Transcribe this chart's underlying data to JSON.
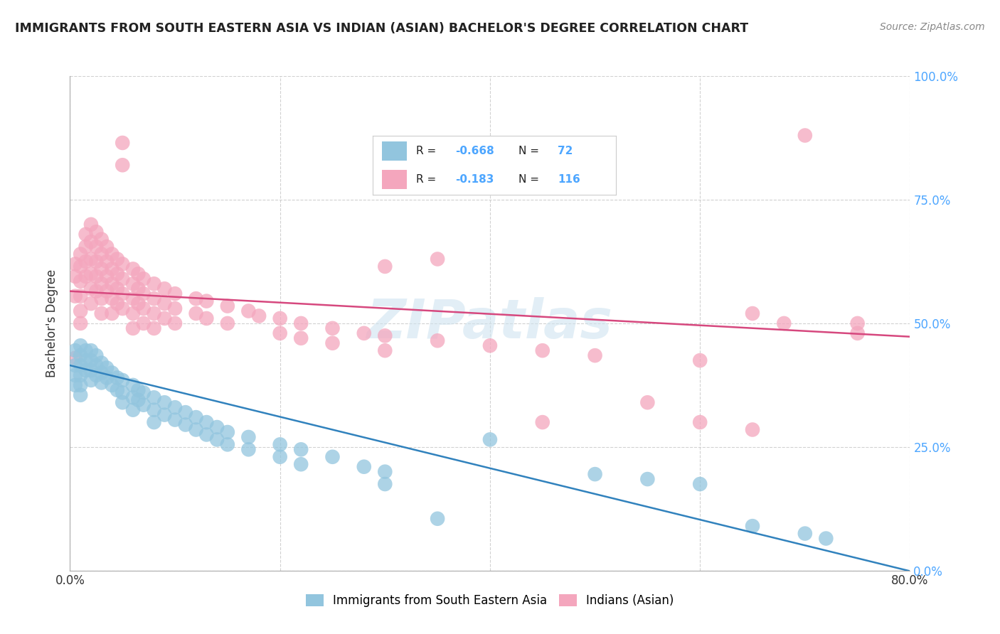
{
  "title": "IMMIGRANTS FROM SOUTH EASTERN ASIA VS INDIAN (ASIAN) BACHELOR'S DEGREE CORRELATION CHART",
  "source": "Source: ZipAtlas.com",
  "ylabel": "Bachelor's Degree",
  "ytick_values": [
    0.0,
    0.25,
    0.5,
    0.75,
    1.0
  ],
  "xlim": [
    0.0,
    0.8
  ],
  "ylim": [
    0.0,
    1.0
  ],
  "watermark": "ZIPatlas",
  "legend_labels": [
    "Immigrants from South Eastern Asia",
    "Indians (Asian)"
  ],
  "blue_color": "#92c5de",
  "pink_color": "#f4a6bd",
  "blue_line_color": "#3182bd",
  "pink_line_color": "#d6487e",
  "background_color": "#ffffff",
  "grid_color": "#cccccc",
  "title_color": "#222222",
  "axis_label_color": "#4da6ff",
  "blue_intercept": 0.415,
  "blue_slope": -0.52,
  "pink_intercept": 0.565,
  "pink_slope": -0.115,
  "blue_scatter": [
    [
      0.005,
      0.445
    ],
    [
      0.005,
      0.415
    ],
    [
      0.005,
      0.395
    ],
    [
      0.005,
      0.375
    ],
    [
      0.01,
      0.455
    ],
    [
      0.01,
      0.435
    ],
    [
      0.01,
      0.415
    ],
    [
      0.01,
      0.395
    ],
    [
      0.01,
      0.375
    ],
    [
      0.01,
      0.355
    ],
    [
      0.015,
      0.445
    ],
    [
      0.015,
      0.425
    ],
    [
      0.015,
      0.405
    ],
    [
      0.02,
      0.445
    ],
    [
      0.02,
      0.425
    ],
    [
      0.02,
      0.405
    ],
    [
      0.02,
      0.385
    ],
    [
      0.025,
      0.435
    ],
    [
      0.025,
      0.415
    ],
    [
      0.025,
      0.395
    ],
    [
      0.03,
      0.42
    ],
    [
      0.03,
      0.4
    ],
    [
      0.03,
      0.38
    ],
    [
      0.035,
      0.41
    ],
    [
      0.035,
      0.39
    ],
    [
      0.04,
      0.4
    ],
    [
      0.04,
      0.375
    ],
    [
      0.045,
      0.39
    ],
    [
      0.045,
      0.365
    ],
    [
      0.05,
      0.385
    ],
    [
      0.05,
      0.36
    ],
    [
      0.05,
      0.34
    ],
    [
      0.06,
      0.375
    ],
    [
      0.06,
      0.35
    ],
    [
      0.06,
      0.325
    ],
    [
      0.065,
      0.365
    ],
    [
      0.065,
      0.345
    ],
    [
      0.07,
      0.36
    ],
    [
      0.07,
      0.335
    ],
    [
      0.08,
      0.35
    ],
    [
      0.08,
      0.325
    ],
    [
      0.08,
      0.3
    ],
    [
      0.09,
      0.34
    ],
    [
      0.09,
      0.315
    ],
    [
      0.1,
      0.33
    ],
    [
      0.1,
      0.305
    ],
    [
      0.11,
      0.32
    ],
    [
      0.11,
      0.295
    ],
    [
      0.12,
      0.31
    ],
    [
      0.12,
      0.285
    ],
    [
      0.13,
      0.3
    ],
    [
      0.13,
      0.275
    ],
    [
      0.14,
      0.29
    ],
    [
      0.14,
      0.265
    ],
    [
      0.15,
      0.28
    ],
    [
      0.15,
      0.255
    ],
    [
      0.17,
      0.27
    ],
    [
      0.17,
      0.245
    ],
    [
      0.2,
      0.255
    ],
    [
      0.2,
      0.23
    ],
    [
      0.22,
      0.245
    ],
    [
      0.22,
      0.215
    ],
    [
      0.25,
      0.23
    ],
    [
      0.28,
      0.21
    ],
    [
      0.3,
      0.2
    ],
    [
      0.3,
      0.175
    ],
    [
      0.35,
      0.105
    ],
    [
      0.4,
      0.265
    ],
    [
      0.5,
      0.195
    ],
    [
      0.55,
      0.185
    ],
    [
      0.6,
      0.175
    ],
    [
      0.65,
      0.09
    ],
    [
      0.7,
      0.075
    ],
    [
      0.72,
      0.065
    ]
  ],
  "pink_scatter": [
    [
      0.005,
      0.62
    ],
    [
      0.005,
      0.595
    ],
    [
      0.005,
      0.555
    ],
    [
      0.005,
      0.43
    ],
    [
      0.01,
      0.64
    ],
    [
      0.01,
      0.615
    ],
    [
      0.01,
      0.585
    ],
    [
      0.01,
      0.555
    ],
    [
      0.01,
      0.525
    ],
    [
      0.01,
      0.5
    ],
    [
      0.015,
      0.68
    ],
    [
      0.015,
      0.655
    ],
    [
      0.015,
      0.625
    ],
    [
      0.015,
      0.595
    ],
    [
      0.02,
      0.7
    ],
    [
      0.02,
      0.665
    ],
    [
      0.02,
      0.63
    ],
    [
      0.02,
      0.6
    ],
    [
      0.02,
      0.57
    ],
    [
      0.02,
      0.54
    ],
    [
      0.025,
      0.685
    ],
    [
      0.025,
      0.655
    ],
    [
      0.025,
      0.625
    ],
    [
      0.025,
      0.595
    ],
    [
      0.025,
      0.565
    ],
    [
      0.03,
      0.67
    ],
    [
      0.03,
      0.64
    ],
    [
      0.03,
      0.61
    ],
    [
      0.03,
      0.58
    ],
    [
      0.03,
      0.55
    ],
    [
      0.03,
      0.52
    ],
    [
      0.035,
      0.655
    ],
    [
      0.035,
      0.625
    ],
    [
      0.035,
      0.595
    ],
    [
      0.035,
      0.565
    ],
    [
      0.04,
      0.64
    ],
    [
      0.04,
      0.61
    ],
    [
      0.04,
      0.58
    ],
    [
      0.04,
      0.55
    ],
    [
      0.04,
      0.52
    ],
    [
      0.045,
      0.63
    ],
    [
      0.045,
      0.6
    ],
    [
      0.045,
      0.57
    ],
    [
      0.045,
      0.54
    ],
    [
      0.05,
      0.865
    ],
    [
      0.05,
      0.82
    ],
    [
      0.05,
      0.62
    ],
    [
      0.05,
      0.59
    ],
    [
      0.05,
      0.56
    ],
    [
      0.05,
      0.53
    ],
    [
      0.06,
      0.61
    ],
    [
      0.06,
      0.58
    ],
    [
      0.06,
      0.55
    ],
    [
      0.06,
      0.52
    ],
    [
      0.06,
      0.49
    ],
    [
      0.065,
      0.6
    ],
    [
      0.065,
      0.57
    ],
    [
      0.065,
      0.54
    ],
    [
      0.07,
      0.59
    ],
    [
      0.07,
      0.56
    ],
    [
      0.07,
      0.53
    ],
    [
      0.07,
      0.5
    ],
    [
      0.08,
      0.58
    ],
    [
      0.08,
      0.55
    ],
    [
      0.08,
      0.52
    ],
    [
      0.08,
      0.49
    ],
    [
      0.09,
      0.57
    ],
    [
      0.09,
      0.54
    ],
    [
      0.09,
      0.51
    ],
    [
      0.1,
      0.56
    ],
    [
      0.1,
      0.53
    ],
    [
      0.1,
      0.5
    ],
    [
      0.12,
      0.55
    ],
    [
      0.12,
      0.52
    ],
    [
      0.13,
      0.545
    ],
    [
      0.13,
      0.51
    ],
    [
      0.15,
      0.535
    ],
    [
      0.15,
      0.5
    ],
    [
      0.17,
      0.525
    ],
    [
      0.18,
      0.515
    ],
    [
      0.2,
      0.51
    ],
    [
      0.2,
      0.48
    ],
    [
      0.22,
      0.5
    ],
    [
      0.22,
      0.47
    ],
    [
      0.25,
      0.49
    ],
    [
      0.25,
      0.46
    ],
    [
      0.28,
      0.48
    ],
    [
      0.3,
      0.615
    ],
    [
      0.3,
      0.475
    ],
    [
      0.3,
      0.445
    ],
    [
      0.35,
      0.63
    ],
    [
      0.35,
      0.465
    ],
    [
      0.4,
      0.455
    ],
    [
      0.45,
      0.445
    ],
    [
      0.45,
      0.3
    ],
    [
      0.5,
      0.435
    ],
    [
      0.55,
      0.34
    ],
    [
      0.6,
      0.425
    ],
    [
      0.6,
      0.3
    ],
    [
      0.65,
      0.52
    ],
    [
      0.65,
      0.285
    ],
    [
      0.68,
      0.5
    ],
    [
      0.7,
      0.88
    ],
    [
      0.75,
      0.5
    ],
    [
      0.75,
      0.48
    ]
  ]
}
